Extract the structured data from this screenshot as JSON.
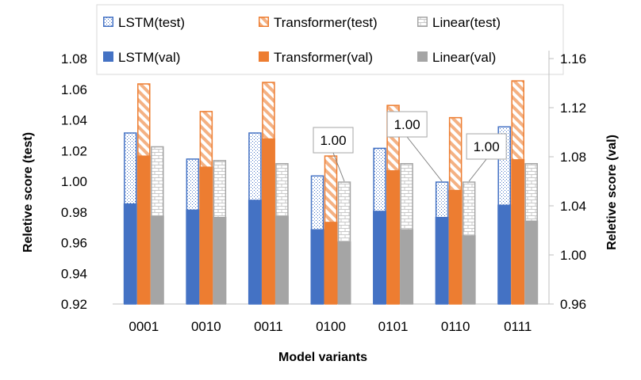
{
  "chart_data": {
    "type": "bar",
    "xlabel": "Model variants",
    "ylabel_left": "Reletive score (test)",
    "ylabel_right": "Reletive score (val)",
    "categories": [
      "0001",
      "0010",
      "0011",
      "0100",
      "0101",
      "0110",
      "0111"
    ],
    "ylim_left": [
      0.92,
      1.08
    ],
    "yticks_left": [
      "0.92",
      "0.94",
      "0.96",
      "0.98",
      "1.00",
      "1.02",
      "1.04",
      "1.06",
      "1.08"
    ],
    "ylim_right": [
      0.96,
      1.16
    ],
    "yticks_right": [
      "0.96",
      "1.00",
      "1.04",
      "1.08",
      "1.12",
      "1.16"
    ],
    "series": [
      {
        "name": "LSTM(test)",
        "axis": "left",
        "kind": "test",
        "color": "#4472C4",
        "values": [
          1.032,
          1.015,
          1.032,
          1.004,
          1.022,
          1.0,
          1.036
        ]
      },
      {
        "name": "Transformer(test)",
        "axis": "left",
        "kind": "test",
        "color": "#ED7D31",
        "values": [
          1.064,
          1.046,
          1.065,
          1.017,
          1.05,
          1.042,
          1.066
        ]
      },
      {
        "name": "Linear(test)",
        "axis": "left",
        "kind": "test",
        "color": "#A5A5A5",
        "values": [
          1.023,
          1.014,
          1.012,
          1.0,
          1.012,
          1.0,
          1.012
        ]
      },
      {
        "name": "LSTM(val)",
        "axis": "right",
        "kind": "val",
        "color": "#4472C4",
        "values": [
          1.042,
          1.037,
          1.045,
          1.021,
          1.036,
          1.031,
          1.041
        ]
      },
      {
        "name": "Transformer(val)",
        "axis": "right",
        "kind": "val",
        "color": "#ED7D31",
        "values": [
          1.081,
          1.072,
          1.095,
          1.027,
          1.069,
          1.053,
          1.078
        ]
      },
      {
        "name": "Linear(val)",
        "axis": "right",
        "kind": "val",
        "color": "#A5A5A5",
        "values": [
          1.032,
          1.031,
          1.032,
          1.011,
          1.021,
          1.016,
          1.028
        ]
      }
    ],
    "annotations": [
      {
        "text": "1.00",
        "category": "0100",
        "series": "Linear(test)"
      },
      {
        "text": "1.00",
        "category": "0110",
        "series": "LSTM(test)"
      },
      {
        "text": "1.00",
        "category": "0110",
        "series": "Linear(test)"
      }
    ],
    "legend": {
      "position": "top",
      "entries": [
        {
          "label": "LSTM(test)",
          "series": 0
        },
        {
          "label": "Transformer(test)",
          "series": 1
        },
        {
          "label": "Linear(test)",
          "series": 2
        },
        {
          "label": "LSTM(val)",
          "series": 3
        },
        {
          "label": "Transformer(val)",
          "series": 4
        },
        {
          "label": "Linear(val)",
          "series": 5
        }
      ]
    },
    "grid": false
  }
}
